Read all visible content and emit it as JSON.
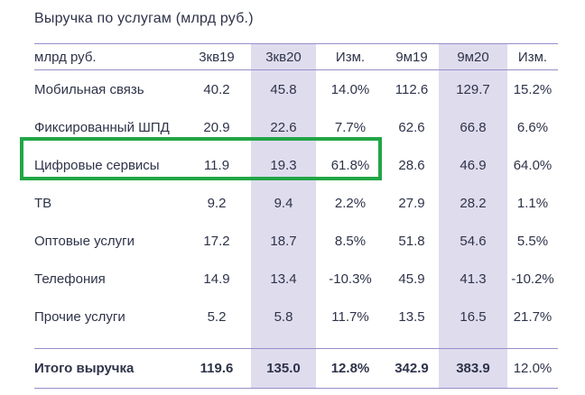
{
  "title": "Выручка по услугам (млрд руб.)",
  "chart_data": {
    "type": "table",
    "title": "Выручка по услугам (млрд руб.)",
    "unit_label": "млрд руб.",
    "columns": [
      "3кв19",
      "3кв20",
      "Изм.",
      "9м19",
      "9м20",
      "Изм."
    ],
    "highlighted_columns": [
      "3кв20",
      "9м20"
    ],
    "rows": [
      {
        "label": "Мобильная связь",
        "values": [
          "40.2",
          "45.8",
          "14.0%",
          "112.6",
          "129.7",
          "15.2%"
        ],
        "highlighted": false
      },
      {
        "label": "Фиксированный ШПД",
        "values": [
          "20.9",
          "22.6",
          "7.7%",
          "62.6",
          "66.8",
          "6.6%"
        ],
        "highlighted": false
      },
      {
        "label": "Цифровые сервисы",
        "values": [
          "11.9",
          "19.3",
          "61.8%",
          "28.6",
          "46.9",
          "64.0%"
        ],
        "highlighted": true
      },
      {
        "label": "ТВ",
        "values": [
          "9.2",
          "9.4",
          "2.2%",
          "27.9",
          "28.2",
          "1.1%"
        ],
        "highlighted": false
      },
      {
        "label": "Оптовые услуги",
        "values": [
          "17.2",
          "18.7",
          "8.5%",
          "51.8",
          "54.6",
          "5.5%"
        ],
        "highlighted": false
      },
      {
        "label": "Телефония",
        "values": [
          "14.9",
          "13.4",
          "-10.3%",
          "45.9",
          "41.3",
          "-10.2%"
        ],
        "highlighted": false
      },
      {
        "label": "Прочие услуги",
        "values": [
          "5.2",
          "5.8",
          "11.7%",
          "13.5",
          "16.5",
          "21.7%"
        ],
        "highlighted": false
      }
    ],
    "total_row": {
      "label": "Итого выручка",
      "values": [
        "119.6",
        "135.0",
        "12.8%",
        "342.9",
        "383.9",
        "12.0%"
      ]
    },
    "annotation": "Green rectangle highlights the Цифровые сервисы row across the first four columns"
  },
  "colors": {
    "text": "#2e3349",
    "column_band": "#dfdcee",
    "rule_line": "#978dc8",
    "highlight_border": "#22a546",
    "background": "#ffffff"
  }
}
